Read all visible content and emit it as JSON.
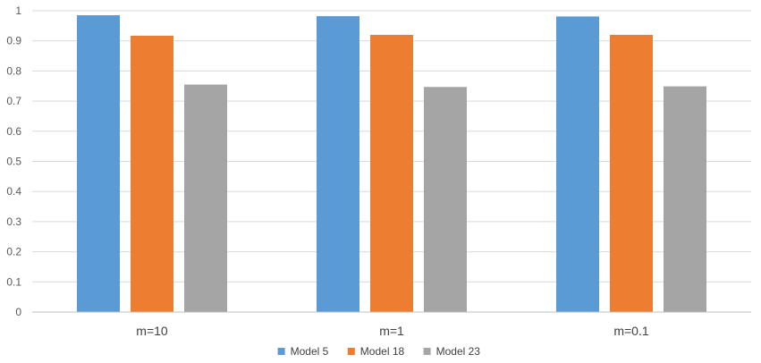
{
  "chart_data": {
    "type": "bar",
    "title": "",
    "xlabel": "",
    "ylabel": "",
    "categories": [
      "m=10",
      "m=1",
      "m=0.1"
    ],
    "series": [
      {
        "name": "Model 5",
        "color": "#5B9BD5",
        "values": [
          0.985,
          0.982,
          0.981
        ]
      },
      {
        "name": "Model 18",
        "color": "#ED7D31",
        "values": [
          0.917,
          0.92,
          0.92
        ]
      },
      {
        "name": "Model 23",
        "color": "#A5A5A5",
        "values": [
          0.755,
          0.747,
          0.749
        ]
      }
    ],
    "ylim": [
      0,
      1
    ],
    "yticks": [
      "0",
      "0.1",
      "0.2",
      "0.3",
      "0.4",
      "0.5",
      "0.6",
      "0.7",
      "0.8",
      "0.9",
      "1"
    ],
    "grid": true,
    "legend_position": "bottom"
  }
}
